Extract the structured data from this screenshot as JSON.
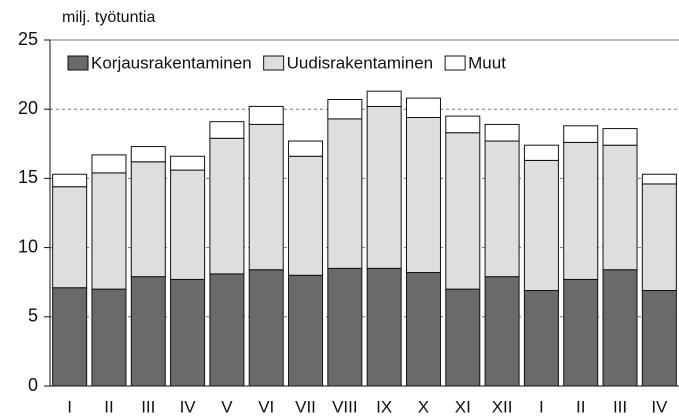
{
  "chart_data": {
    "type": "stacked_bar",
    "ylabel": "milj. työtuntia",
    "categories": [
      "I",
      "II",
      "III",
      "IV",
      "V",
      "VI",
      "VII",
      "VIII",
      "IX",
      "X",
      "XI",
      "XII",
      "I",
      "II",
      "III",
      "IV"
    ],
    "series": [
      {
        "name": "Korjausrakentaminen",
        "color": "#6a6a6a",
        "values": [
          7.1,
          7.0,
          7.9,
          7.7,
          8.1,
          8.4,
          8.0,
          8.5,
          8.5,
          8.2,
          7.0,
          7.9,
          6.9,
          7.7,
          8.4,
          6.9
        ]
      },
      {
        "name": "Uudisrakentaminen",
        "color": "#dedede",
        "values": [
          7.3,
          8.4,
          8.3,
          7.9,
          9.8,
          10.5,
          8.6,
          10.8,
          11.7,
          11.2,
          11.3,
          9.8,
          9.4,
          9.9,
          9.0,
          7.7
        ]
      },
      {
        "name": "Muut",
        "color": "#ffffff",
        "values": [
          0.9,
          1.3,
          1.1,
          1.0,
          1.2,
          1.3,
          1.1,
          1.4,
          1.1,
          1.4,
          1.2,
          1.2,
          1.1,
          1.2,
          1.2,
          0.7
        ]
      }
    ],
    "ylim": [
      0,
      25
    ],
    "yticks": [
      0,
      5,
      10,
      15,
      20,
      25
    ],
    "grid": true,
    "legend": "upper left"
  }
}
